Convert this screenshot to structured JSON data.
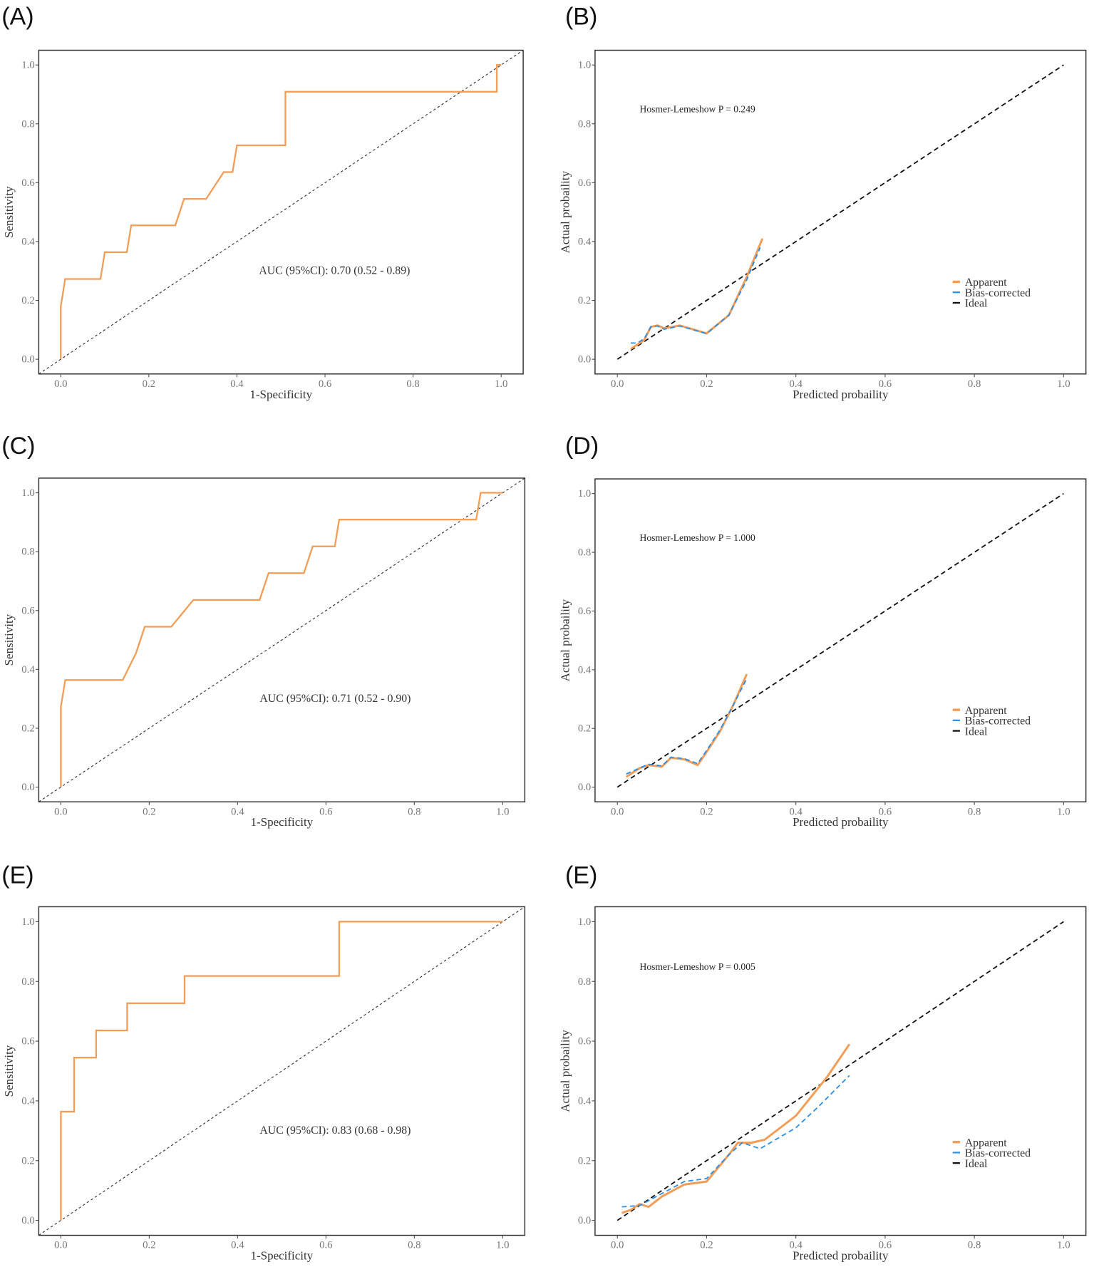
{
  "colors": {
    "apparent": "#f39c55",
    "bias_corrected": "#2b8fe8",
    "ideal": "#111111",
    "roc": "#f39c55"
  },
  "chart_data": [
    {
      "panel_label": "(A)",
      "type": "line",
      "kind": "roc",
      "xlabel": "1-Specificity",
      "ylabel": "Sensitivity",
      "xlim": [
        0,
        1
      ],
      "ylim": [
        0,
        1
      ],
      "xticks": [
        "0.0",
        "0.2",
        "0.4",
        "0.6",
        "0.8",
        "1.0"
      ],
      "yticks": [
        "0.0",
        "0.2",
        "0.4",
        "0.6",
        "0.8",
        "1.0"
      ],
      "annotation": "AUC (95%CI): 0.70 (0.52 - 0.89)",
      "series": [
        {
          "name": "ROC",
          "points": [
            [
              0,
              0
            ],
            [
              0,
              0.18
            ],
            [
              0.01,
              0.273
            ],
            [
              0.09,
              0.273
            ],
            [
              0.1,
              0.364
            ],
            [
              0.15,
              0.364
            ],
            [
              0.16,
              0.455
            ],
            [
              0.26,
              0.455
            ],
            [
              0.28,
              0.545
            ],
            [
              0.33,
              0.545
            ],
            [
              0.37,
              0.636
            ],
            [
              0.39,
              0.636
            ],
            [
              0.4,
              0.727
            ],
            [
              0.51,
              0.727
            ],
            [
              0.51,
              0.909
            ],
            [
              0.99,
              0.909
            ],
            [
              0.99,
              1
            ],
            [
              1,
              1
            ]
          ]
        }
      ]
    },
    {
      "panel_label": "(B)",
      "type": "line",
      "kind": "calibration",
      "xlabel": "Predicted probaility",
      "ylabel": "Actual probaility",
      "xlim": [
        0,
        1
      ],
      "ylim": [
        0,
        1
      ],
      "xticks": [
        "0.0",
        "0.2",
        "0.4",
        "0.6",
        "0.8",
        "1.0"
      ],
      "yticks": [
        "0.0",
        "0.2",
        "0.4",
        "0.6",
        "0.8",
        "1.0"
      ],
      "annotation": "Hosmer-Lemeshow  P  =  0.249",
      "legend": [
        "Apparent",
        "Bias-corrected",
        "Ideal"
      ],
      "series": [
        {
          "name": "Apparent",
          "points": [
            [
              0.03,
              0.035
            ],
            [
              0.06,
              0.065
            ],
            [
              0.075,
              0.11
            ],
            [
              0.09,
              0.115
            ],
            [
              0.105,
              0.105
            ],
            [
              0.14,
              0.115
            ],
            [
              0.2,
              0.088
            ],
            [
              0.25,
              0.15
            ],
            [
              0.29,
              0.28
            ],
            [
              0.325,
              0.41
            ]
          ]
        },
        {
          "name": "Bias-corrected",
          "points": [
            [
              0.03,
              0.055
            ],
            [
              0.045,
              0.055
            ],
            [
              0.06,
              0.07
            ],
            [
              0.075,
              0.11
            ],
            [
              0.09,
              0.113
            ],
            [
              0.105,
              0.102
            ],
            [
              0.14,
              0.113
            ],
            [
              0.2,
              0.087
            ],
            [
              0.25,
              0.15
            ],
            [
              0.29,
              0.27
            ],
            [
              0.32,
              0.38
            ]
          ]
        }
      ]
    },
    {
      "panel_label": "(C)",
      "type": "line",
      "kind": "roc",
      "xlabel": "1-Specificity",
      "ylabel": "Sensitivity",
      "xlim": [
        0,
        1
      ],
      "ylim": [
        0,
        1
      ],
      "xticks": [
        "0.0",
        "0.2",
        "0.4",
        "0.6",
        "0.8",
        "1.0"
      ],
      "yticks": [
        "0.0",
        "0.2",
        "0.4",
        "0.6",
        "0.8",
        "1.0"
      ],
      "annotation": "AUC (95%CI): 0.71 (0.52 - 0.90)",
      "series": [
        {
          "name": "ROC",
          "points": [
            [
              0,
              0
            ],
            [
              0,
              0.273
            ],
            [
              0.01,
              0.364
            ],
            [
              0.14,
              0.364
            ],
            [
              0.17,
              0.455
            ],
            [
              0.19,
              0.545
            ],
            [
              0.25,
              0.545
            ],
            [
              0.3,
              0.636
            ],
            [
              0.45,
              0.636
            ],
            [
              0.47,
              0.727
            ],
            [
              0.55,
              0.727
            ],
            [
              0.57,
              0.818
            ],
            [
              0.62,
              0.818
            ],
            [
              0.63,
              0.909
            ],
            [
              0.94,
              0.909
            ],
            [
              0.95,
              1
            ],
            [
              1,
              1
            ]
          ]
        }
      ]
    },
    {
      "panel_label": "(D)",
      "type": "line",
      "kind": "calibration",
      "xlabel": "Predicted probaility",
      "ylabel": "Actual probaility",
      "xlim": [
        0,
        1
      ],
      "ylim": [
        0,
        1
      ],
      "xticks": [
        "0.0",
        "0.2",
        "0.4",
        "0.6",
        "0.8",
        "1.0"
      ],
      "yticks": [
        "0.0",
        "0.2",
        "0.4",
        "0.6",
        "0.8",
        "1.0"
      ],
      "annotation": "Hosmer-Lemeshow  P  =  1.000",
      "legend": [
        "Apparent",
        "Bias-corrected",
        "Ideal"
      ],
      "series": [
        {
          "name": "Apparent",
          "points": [
            [
              0.02,
              0.035
            ],
            [
              0.05,
              0.065
            ],
            [
              0.07,
              0.075
            ],
            [
              0.1,
              0.07
            ],
            [
              0.12,
              0.1
            ],
            [
              0.15,
              0.095
            ],
            [
              0.18,
              0.075
            ],
            [
              0.2,
              0.12
            ],
            [
              0.23,
              0.19
            ],
            [
              0.26,
              0.28
            ],
            [
              0.29,
              0.385
            ]
          ]
        },
        {
          "name": "Bias-corrected",
          "points": [
            [
              0.02,
              0.045
            ],
            [
              0.05,
              0.065
            ],
            [
              0.07,
              0.078
            ],
            [
              0.1,
              0.072
            ],
            [
              0.12,
              0.102
            ],
            [
              0.15,
              0.097
            ],
            [
              0.18,
              0.08
            ],
            [
              0.2,
              0.125
            ],
            [
              0.23,
              0.195
            ],
            [
              0.26,
              0.28
            ],
            [
              0.29,
              0.37
            ]
          ]
        }
      ]
    },
    {
      "panel_label": "(E)",
      "type": "line",
      "kind": "roc",
      "xlabel": "1-Specificity",
      "ylabel": "Sensitivity",
      "xlim": [
        0,
        1
      ],
      "ylim": [
        0,
        1
      ],
      "xticks": [
        "0.0",
        "0.2",
        "0.4",
        "0.6",
        "0.8",
        "1.0"
      ],
      "yticks": [
        "0.0",
        "0.2",
        "0.4",
        "0.6",
        "0.8",
        "1.0"
      ],
      "annotation": "AUC (95%CI): 0.83 (0.68 - 0.98)",
      "series": [
        {
          "name": "ROC",
          "points": [
            [
              0,
              0
            ],
            [
              0,
              0.364
            ],
            [
              0.03,
              0.364
            ],
            [
              0.03,
              0.545
            ],
            [
              0.08,
              0.545
            ],
            [
              0.08,
              0.636
            ],
            [
              0.15,
              0.636
            ],
            [
              0.15,
              0.727
            ],
            [
              0.28,
              0.727
            ],
            [
              0.28,
              0.818
            ],
            [
              0.63,
              0.818
            ],
            [
              0.63,
              1
            ],
            [
              1,
              1
            ]
          ]
        }
      ]
    },
    {
      "panel_label": "(E)",
      "type": "line",
      "kind": "calibration",
      "xlabel": "Predicted probaility",
      "ylabel": "Actual probaility",
      "xlim": [
        0,
        1
      ],
      "ylim": [
        0,
        1
      ],
      "xticks": [
        "0.0",
        "0.2",
        "0.4",
        "0.6",
        "0.8",
        "1.0"
      ],
      "yticks": [
        "0.0",
        "0.2",
        "0.4",
        "0.6",
        "0.8",
        "1.0"
      ],
      "annotation": "Hosmer-Lemeshow  P  =  0.005",
      "legend": [
        "Apparent",
        "Bias-corrected",
        "Ideal"
      ],
      "series": [
        {
          "name": "Apparent",
          "points": [
            [
              0.01,
              0.025
            ],
            [
              0.03,
              0.035
            ],
            [
              0.05,
              0.055
            ],
            [
              0.07,
              0.045
            ],
            [
              0.1,
              0.08
            ],
            [
              0.15,
              0.12
            ],
            [
              0.2,
              0.13
            ],
            [
              0.25,
              0.22
            ],
            [
              0.27,
              0.26
            ],
            [
              0.3,
              0.26
            ],
            [
              0.33,
              0.27
            ],
            [
              0.4,
              0.35
            ],
            [
              0.47,
              0.48
            ],
            [
              0.52,
              0.59
            ]
          ]
        },
        {
          "name": "Bias-corrected",
          "points": [
            [
              0.01,
              0.045
            ],
            [
              0.05,
              0.05
            ],
            [
              0.1,
              0.09
            ],
            [
              0.15,
              0.13
            ],
            [
              0.2,
              0.14
            ],
            [
              0.25,
              0.22
            ],
            [
              0.28,
              0.26
            ],
            [
              0.32,
              0.24
            ],
            [
              0.4,
              0.31
            ],
            [
              0.45,
              0.38
            ],
            [
              0.52,
              0.485
            ]
          ]
        }
      ]
    }
  ]
}
